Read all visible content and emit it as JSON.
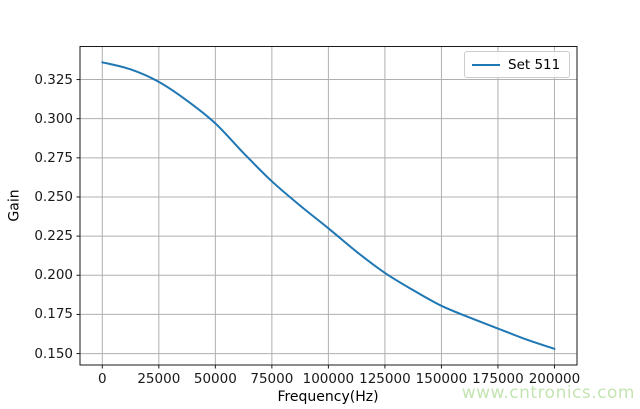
{
  "chart_data": {
    "type": "line",
    "title": "",
    "xlabel": "Frequency(Hz)",
    "ylabel": "Gain",
    "grid": true,
    "legend_position": "upper right",
    "xlim": [
      -9860,
      209960
    ],
    "ylim": [
      0.1427,
      0.3461
    ],
    "x_ticks": [
      0,
      25000,
      50000,
      75000,
      100000,
      125000,
      150000,
      175000,
      200000
    ],
    "x_tick_labels": [
      "0",
      "25000",
      "50000",
      "75000",
      "100000",
      "125000",
      "150000",
      "175000",
      "200000"
    ],
    "y_ticks": [
      0.15,
      0.175,
      0.2,
      0.225,
      0.25,
      0.275,
      0.3,
      0.325
    ],
    "y_tick_labels": [
      "0.150",
      "0.175",
      "0.200",
      "0.225",
      "0.250",
      "0.275",
      "0.300",
      "0.325"
    ],
    "series": [
      {
        "name": "Set 511",
        "color": "#1f77b4",
        "x": [
          0,
          12500,
          25000,
          37500,
          50000,
          62500,
          75000,
          87500,
          100000,
          112500,
          125000,
          137500,
          150000,
          162500,
          175000,
          187500,
          200000
        ],
        "y": [
          0.336,
          0.3315,
          0.3235,
          0.3115,
          0.297,
          0.278,
          0.26,
          0.2445,
          0.23,
          0.215,
          0.2015,
          0.1905,
          0.1805,
          0.173,
          0.166,
          0.159,
          0.153
        ]
      }
    ]
  },
  "watermark": {
    "text": "www.cntronics.com",
    "color": "#c4e4b2"
  },
  "colors": {
    "grid": "#b0b0b0",
    "spine": "#1a1a1a",
    "tick": "#1a1a1a",
    "legend_border": "#cccccc"
  }
}
